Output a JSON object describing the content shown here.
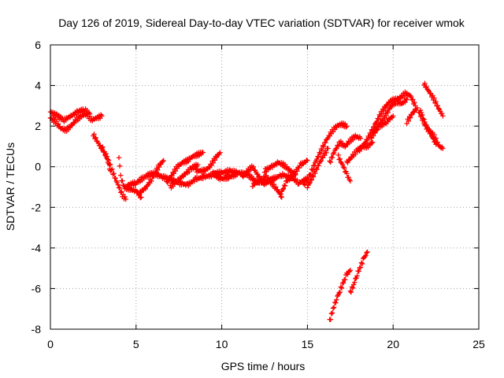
{
  "chart_data": {
    "type": "scatter",
    "title": "Day 126 of 2019, Sidereal Day-to-day VTEC variation (SDTVAR) for receiver wmok",
    "xlabel": "GPS time / hours",
    "ylabel": "SDTVAR / TECUs",
    "xlim": [
      0,
      25
    ],
    "ylim": [
      -8,
      6
    ],
    "xticks": [
      "0",
      "5",
      "10",
      "15",
      "20",
      "25"
    ],
    "yticks": [
      "-8",
      "-6",
      "-4",
      "-2",
      "0",
      "2",
      "4",
      "6"
    ],
    "grid": true,
    "marker": "+",
    "series_color": "#ff0000",
    "series": [
      {
        "name": "SDTVAR",
        "segments": [
          [
            [
              0.0,
              2.4
            ],
            [
              0.3,
              2.2
            ],
            [
              0.6,
              1.9
            ],
            [
              0.9,
              1.8
            ],
            [
              1.2,
              2.0
            ],
            [
              1.5,
              2.3
            ],
            [
              1.8,
              2.5
            ],
            [
              2.1,
              2.6
            ],
            [
              2.4,
              2.3
            ],
            [
              2.7,
              2.4
            ],
            [
              3.0,
              2.5
            ]
          ],
          [
            [
              0.0,
              2.7
            ],
            [
              0.4,
              2.5
            ],
            [
              0.8,
              2.3
            ],
            [
              1.2,
              2.5
            ],
            [
              1.6,
              2.7
            ],
            [
              2.0,
              2.8
            ],
            [
              2.3,
              2.6
            ]
          ],
          [
            [
              2.5,
              1.6
            ],
            [
              2.9,
              1.0
            ],
            [
              3.3,
              0.5
            ],
            [
              3.6,
              -0.2
            ],
            [
              3.9,
              -0.8
            ],
            [
              4.2,
              -1.4
            ],
            [
              4.4,
              -1.6
            ]
          ],
          [
            [
              3.0,
              1.0
            ],
            [
              3.3,
              0.4
            ],
            [
              3.5,
              -0.2
            ]
          ],
          [
            [
              4.0,
              0.5
            ],
            [
              4.1,
              -0.5
            ],
            [
              4.3,
              -1.0
            ],
            [
              4.6,
              -1.1
            ],
            [
              5.0,
              -1.2
            ],
            [
              5.3,
              -1.5
            ]
          ],
          [
            [
              4.5,
              -0.9
            ],
            [
              5.0,
              -0.8
            ],
            [
              5.5,
              -0.5
            ],
            [
              6.0,
              -0.3
            ],
            [
              6.5,
              -0.5
            ],
            [
              7.0,
              -0.6
            ],
            [
              7.5,
              -0.8
            ],
            [
              8.0,
              -0.9
            ],
            [
              8.5,
              -0.6
            ],
            [
              9.0,
              -0.5
            ],
            [
              9.5,
              -0.4
            ],
            [
              10.0,
              -0.6
            ],
            [
              10.5,
              -0.5
            ],
            [
              11.0,
              -0.3
            ],
            [
              11.5,
              -0.4
            ],
            [
              12.0,
              -0.7
            ],
            [
              12.5,
              -0.8
            ],
            [
              13.0,
              -0.6
            ],
            [
              13.5,
              -0.4
            ],
            [
              14.0,
              -0.5
            ],
            [
              14.5,
              -0.8
            ],
            [
              15.0,
              -0.6
            ]
          ],
          [
            [
              5.2,
              -1.3
            ],
            [
              5.6,
              -1.0
            ],
            [
              6.0,
              -0.5
            ],
            [
              6.3,
              0.0
            ],
            [
              6.6,
              0.3
            ]
          ],
          [
            [
              6.8,
              -0.8
            ],
            [
              7.1,
              -0.4
            ],
            [
              7.4,
              0.0
            ],
            [
              7.7,
              0.2
            ],
            [
              8.0,
              0.3
            ],
            [
              8.3,
              0.5
            ],
            [
              8.6,
              0.6
            ],
            [
              8.9,
              0.7
            ]
          ],
          [
            [
              7.0,
              -1.0
            ],
            [
              7.4,
              -0.7
            ],
            [
              7.8,
              -0.4
            ],
            [
              8.2,
              -0.1
            ],
            [
              8.6,
              0.1
            ]
          ],
          [
            [
              8.5,
              -0.2
            ],
            [
              9.0,
              -0.2
            ],
            [
              9.3,
              0.0
            ],
            [
              9.6,
              0.4
            ],
            [
              9.9,
              0.7
            ]
          ],
          [
            [
              9.5,
              -0.3
            ],
            [
              10.0,
              -0.3
            ],
            [
              10.5,
              -0.2
            ],
            [
              10.9,
              -0.3
            ]
          ],
          [
            [
              11.2,
              -0.5
            ],
            [
              11.5,
              -0.2
            ],
            [
              11.8,
              0.0
            ],
            [
              12.1,
              -0.4
            ],
            [
              12.4,
              -0.8
            ],
            [
              12.7,
              -0.7
            ],
            [
              13.0,
              -0.6
            ]
          ],
          [
            [
              11.8,
              -0.9
            ],
            [
              12.2,
              -0.7
            ],
            [
              12.6,
              -0.5
            ],
            [
              13.0,
              -0.9
            ],
            [
              13.3,
              -1.2
            ],
            [
              13.5,
              -1.5
            ]
          ],
          [
            [
              12.5,
              -0.2
            ],
            [
              12.9,
              0.0
            ],
            [
              13.3,
              0.2
            ],
            [
              13.6,
              0.1
            ],
            [
              14.0,
              -0.2
            ],
            [
              14.3,
              -0.4
            ]
          ],
          [
            [
              13.4,
              -1.4
            ],
            [
              13.8,
              -0.7
            ],
            [
              14.2,
              -0.4
            ],
            [
              14.6,
              0.1
            ],
            [
              15.0,
              0.3
            ]
          ],
          [
            [
              14.8,
              -0.9
            ],
            [
              15.2,
              -0.3
            ],
            [
              15.5,
              0.3
            ],
            [
              15.8,
              0.8
            ],
            [
              16.1,
              1.3
            ],
            [
              16.4,
              1.7
            ],
            [
              16.7,
              2.0
            ],
            [
              17.0,
              2.1
            ],
            [
              17.3,
              2.0
            ]
          ],
          [
            [
              15.0,
              -1.0
            ],
            [
              15.3,
              -0.5
            ],
            [
              15.6,
              0.0
            ],
            [
              15.9,
              0.5
            ],
            [
              16.2,
              0.9
            ]
          ],
          [
            [
              16.3,
              0.2
            ],
            [
              16.6,
              0.8
            ],
            [
              16.9,
              1.2
            ],
            [
              17.2,
              1.0
            ],
            [
              17.5,
              1.3
            ],
            [
              17.8,
              1.5
            ],
            [
              18.1,
              1.4
            ]
          ],
          [
            [
              16.8,
              0.5
            ],
            [
              17.1,
              0.0
            ],
            [
              17.3,
              -0.4
            ],
            [
              17.5,
              -0.7
            ]
          ],
          [
            [
              17.3,
              0.2
            ],
            [
              17.6,
              0.5
            ],
            [
              17.9,
              0.8
            ],
            [
              18.2,
              1.0
            ],
            [
              18.5,
              1.0
            ],
            [
              18.8,
              1.2
            ]
          ],
          [
            [
              18.0,
              0.8
            ],
            [
              18.3,
              1.1
            ],
            [
              18.6,
              1.5
            ],
            [
              18.9,
              2.0
            ],
            [
              19.2,
              2.5
            ],
            [
              19.5,
              2.9
            ],
            [
              19.8,
              3.2
            ],
            [
              20.1,
              3.3
            ],
            [
              20.4,
              3.4
            ],
            [
              20.7,
              3.6
            ],
            [
              21.0,
              3.5
            ],
            [
              21.3,
              3.0
            ]
          ],
          [
            [
              18.7,
              1.4
            ],
            [
              19.0,
              1.8
            ],
            [
              19.3,
              2.2
            ],
            [
              19.6,
              2.6
            ],
            [
              19.9,
              3.0
            ],
            [
              20.2,
              3.2
            ],
            [
              20.5,
              3.1
            ],
            [
              20.8,
              3.3
            ]
          ],
          [
            [
              18.8,
              1.7
            ],
            [
              19.2,
              2.0
            ],
            [
              19.6,
              2.2
            ],
            [
              20.0,
              2.5
            ]
          ],
          [
            [
              20.8,
              2.2
            ],
            [
              21.1,
              2.6
            ],
            [
              21.4,
              2.9
            ]
          ],
          [
            [
              21.5,
              2.7
            ],
            [
              21.8,
              2.2
            ],
            [
              22.1,
              1.8
            ],
            [
              22.4,
              1.5
            ],
            [
              22.7,
              1.0
            ],
            [
              22.9,
              0.9
            ]
          ],
          [
            [
              21.8,
              4.1
            ],
            [
              22.1,
              3.7
            ],
            [
              22.4,
              3.3
            ],
            [
              22.7,
              2.8
            ],
            [
              22.9,
              2.5
            ]
          ],
          [
            [
              21.6,
              2.8
            ],
            [
              21.9,
              2.0
            ],
            [
              22.2,
              1.6
            ],
            [
              22.5,
              1.1
            ]
          ],
          [
            [
              16.3,
              -7.6
            ],
            [
              16.5,
              -7.0
            ],
            [
              16.7,
              -6.5
            ],
            [
              16.9,
              -6.1
            ],
            [
              17.1,
              -5.7
            ],
            [
              17.3,
              -5.3
            ],
            [
              17.5,
              -5.1
            ]
          ],
          [
            [
              17.5,
              -6.2
            ],
            [
              17.7,
              -5.8
            ],
            [
              17.9,
              -5.3
            ],
            [
              18.1,
              -4.9
            ],
            [
              18.3,
              -4.5
            ],
            [
              18.5,
              -4.2
            ]
          ]
        ]
      }
    ]
  }
}
